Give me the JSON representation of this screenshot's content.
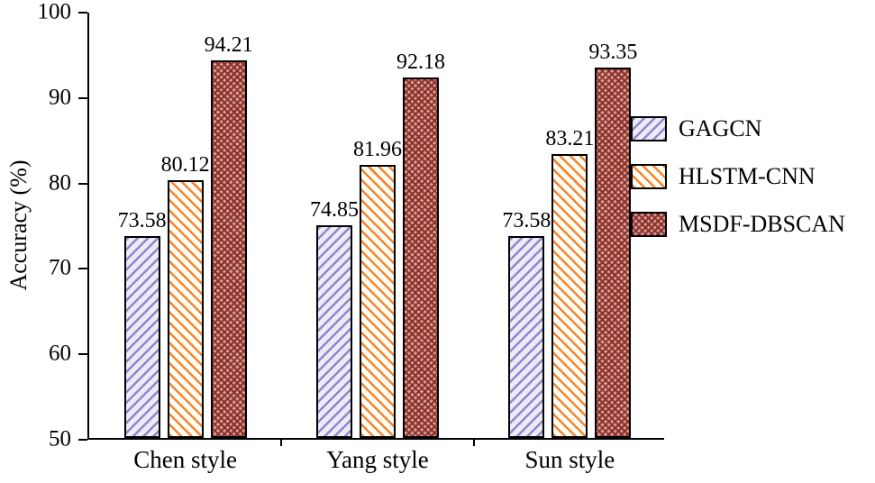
{
  "chart_data": {
    "type": "bar",
    "categories": [
      "Chen style",
      "Yang style",
      "Sun style"
    ],
    "series": [
      {
        "name": "GAGCN",
        "values": [
          73.58,
          74.85,
          73.58
        ],
        "pattern": "purple-diagonal-hatch"
      },
      {
        "name": "HLSTM-CNN",
        "values": [
          80.12,
          81.96,
          83.21
        ],
        "pattern": "orange-diagonal-hatch"
      },
      {
        "name": "MSDF-DBSCAN",
        "values": [
          94.21,
          92.18,
          93.35
        ],
        "pattern": "dark-red-crosshatch"
      }
    ],
    "title": "",
    "xlabel": "",
    "ylabel": "Accuracy (%)",
    "ylim": [
      50,
      100
    ],
    "yticks": [
      50,
      60,
      70,
      80,
      90,
      100
    ],
    "grid": false,
    "legend_position": "right",
    "bar_value_labels_visible": true,
    "colors": {
      "gagcn_line": "#9486c8",
      "gagcn_bg": "#ecebf8",
      "hlstm_line": "#f6862c",
      "hlstm_bg": "#fffdf8",
      "msdf_line": "#8b2823",
      "msdf_bg": "#cf9e98",
      "axis": "#000000",
      "background": "#ffffff"
    }
  }
}
